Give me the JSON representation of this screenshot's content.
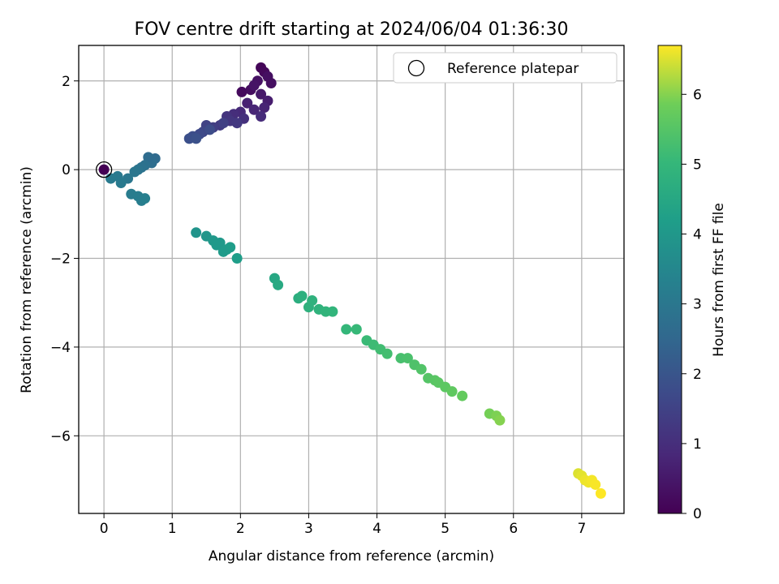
{
  "chart_data": {
    "type": "scatter",
    "title": "FOV centre drift starting at 2024/06/04 01:36:30",
    "xlabel": "Angular distance from reference (arcmin)",
    "ylabel": "Rotation from reference (arcmin)",
    "xlim": [
      -0.37,
      7.62
    ],
    "ylim": [
      -7.75,
      2.8
    ],
    "xticks": [
      0,
      1,
      2,
      3,
      4,
      5,
      6,
      7
    ],
    "yticks": [
      -6,
      -4,
      -2,
      0,
      2
    ],
    "grid": true,
    "legend": {
      "position": "top-right",
      "label": "Reference platepar"
    },
    "reference_point": {
      "x": 0,
      "y": 0
    },
    "colorbar": {
      "label": "Hours from first FF file",
      "range": [
        0,
        6.7
      ],
      "ticks": [
        0,
        1,
        2,
        3,
        4,
        5,
        6
      ],
      "colormap": "viridis"
    },
    "points": [
      [
        0.0,
        0.0,
        0.0
      ],
      [
        2.02,
        1.75,
        0.2
      ],
      [
        2.15,
        1.8,
        0.25
      ],
      [
        2.3,
        2.3,
        0.1
      ],
      [
        2.35,
        2.2,
        0.15
      ],
      [
        2.4,
        2.1,
        0.3
      ],
      [
        2.25,
        2.0,
        0.35
      ],
      [
        2.2,
        1.9,
        0.4
      ],
      [
        2.45,
        1.95,
        0.3
      ],
      [
        2.3,
        1.7,
        0.5
      ],
      [
        2.4,
        1.55,
        0.6
      ],
      [
        2.1,
        1.5,
        0.7
      ],
      [
        2.2,
        1.35,
        0.8
      ],
      [
        2.35,
        1.4,
        0.75
      ],
      [
        2.0,
        1.3,
        0.9
      ],
      [
        1.9,
        1.25,
        1.0
      ],
      [
        2.3,
        1.2,
        0.95
      ],
      [
        2.05,
        1.15,
        1.05
      ],
      [
        1.8,
        1.2,
        1.15
      ],
      [
        1.85,
        1.1,
        1.2
      ],
      [
        1.7,
        1.0,
        1.3
      ],
      [
        1.95,
        1.05,
        1.25
      ],
      [
        1.6,
        0.95,
        1.4
      ],
      [
        1.5,
        1.0,
        1.5
      ],
      [
        1.45,
        0.85,
        1.6
      ],
      [
        1.4,
        0.8,
        1.7
      ],
      [
        1.3,
        0.75,
        1.8
      ],
      [
        1.25,
        0.7,
        1.85
      ],
      [
        1.35,
        0.7,
        1.9
      ],
      [
        1.55,
        0.9,
        1.75
      ],
      [
        1.75,
        1.05,
        1.45
      ],
      [
        0.75,
        0.25,
        2.6
      ],
      [
        0.7,
        0.15,
        2.7
      ],
      [
        0.65,
        0.28,
        2.65
      ],
      [
        0.6,
        0.1,
        2.8
      ],
      [
        0.55,
        0.05,
        2.85
      ],
      [
        0.5,
        0.0,
        2.9
      ],
      [
        0.45,
        -0.05,
        2.95
      ],
      [
        0.35,
        -0.2,
        3.0
      ],
      [
        0.2,
        -0.15,
        3.05
      ],
      [
        0.1,
        -0.2,
        3.1
      ],
      [
        0.25,
        -0.3,
        3.1
      ],
      [
        0.4,
        -0.55,
        3.15
      ],
      [
        0.5,
        -0.6,
        3.2
      ],
      [
        0.55,
        -0.7,
        3.2
      ],
      [
        0.6,
        -0.65,
        3.25
      ],
      [
        1.35,
        -1.42,
        3.9
      ],
      [
        1.5,
        -1.5,
        3.95
      ],
      [
        1.6,
        -1.6,
        4.0
      ],
      [
        1.7,
        -1.65,
        4.05
      ],
      [
        1.8,
        -1.8,
        4.1
      ],
      [
        1.85,
        -1.75,
        4.15
      ],
      [
        1.95,
        -2.0,
        4.2
      ],
      [
        1.75,
        -1.85,
        4.1
      ],
      [
        1.65,
        -1.7,
        4.05
      ],
      [
        2.5,
        -2.45,
        4.5
      ],
      [
        2.55,
        -2.6,
        4.55
      ],
      [
        2.85,
        -2.9,
        4.7
      ],
      [
        2.9,
        -2.85,
        4.75
      ],
      [
        3.0,
        -3.1,
        4.8
      ],
      [
        3.05,
        -2.95,
        4.82
      ],
      [
        3.15,
        -3.15,
        4.85
      ],
      [
        3.25,
        -3.2,
        4.9
      ],
      [
        3.35,
        -3.2,
        4.92
      ],
      [
        3.55,
        -3.6,
        5.0
      ],
      [
        3.7,
        -3.6,
        5.05
      ],
      [
        3.85,
        -3.85,
        5.1
      ],
      [
        3.95,
        -3.95,
        5.15
      ],
      [
        4.05,
        -4.05,
        5.2
      ],
      [
        4.15,
        -4.15,
        5.25
      ],
      [
        4.35,
        -4.25,
        5.3
      ],
      [
        4.45,
        -4.25,
        5.35
      ],
      [
        4.55,
        -4.4,
        5.4
      ],
      [
        4.65,
        -4.5,
        5.45
      ],
      [
        4.75,
        -4.7,
        5.5
      ],
      [
        4.85,
        -4.75,
        5.55
      ],
      [
        4.9,
        -4.8,
        5.58
      ],
      [
        5.0,
        -4.9,
        5.6
      ],
      [
        5.1,
        -5.0,
        5.65
      ],
      [
        5.25,
        -5.1,
        5.7
      ],
      [
        5.65,
        -5.5,
        5.9
      ],
      [
        5.75,
        -5.55,
        5.95
      ],
      [
        5.8,
        -5.65,
        6.0
      ],
      [
        6.95,
        -6.85,
        6.5
      ],
      [
        7.0,
        -6.9,
        6.55
      ],
      [
        7.05,
        -7.0,
        6.6
      ],
      [
        7.1,
        -7.05,
        6.62
      ],
      [
        7.15,
        -7.0,
        6.65
      ],
      [
        7.2,
        -7.1,
        6.67
      ],
      [
        7.28,
        -7.3,
        6.7
      ]
    ]
  }
}
